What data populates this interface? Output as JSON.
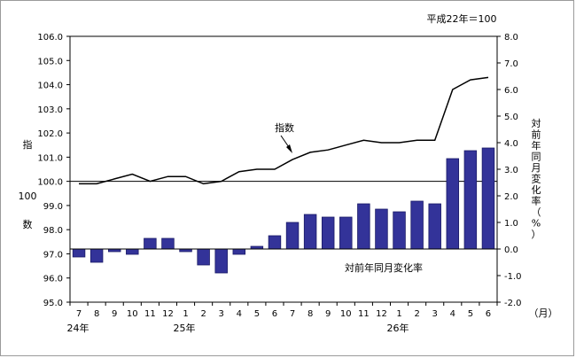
{
  "chart_data": {
    "type": "bar+line",
    "base_note": "平成22年＝100",
    "x_categories": [
      "7",
      "8",
      "9",
      "10",
      "11",
      "12",
      "1",
      "2",
      "3",
      "4",
      "5",
      "6",
      "7",
      "8",
      "9",
      "10",
      "11",
      "12",
      "1",
      "2",
      "3",
      "4",
      "5",
      "6"
    ],
    "x_unit": "（月）",
    "year_labels": [
      "24年",
      "25年",
      "26年"
    ],
    "left_axis": {
      "label_top": "指",
      "label_mid": "100",
      "label_bottom": "数",
      "ylim": [
        95.0,
        106.0
      ],
      "ticks": [
        "95.0",
        "96.0",
        "97.0",
        "98.0",
        "99.0",
        "100.0",
        "101.0",
        "102.0",
        "103.0",
        "104.0",
        "105.0",
        "106.0"
      ]
    },
    "right_axis": {
      "label_chars": [
        "対",
        "前",
        "年",
        "同",
        "月",
        "変",
        "化",
        "率",
        "（",
        "%",
        "）"
      ],
      "ylim": [
        -2.0,
        8.0
      ],
      "ticks": [
        "-2.0",
        "-1.0",
        "0.0",
        "1.0",
        "2.0",
        "3.0",
        "4.0",
        "5.0",
        "6.0",
        "7.0",
        "8.0"
      ]
    },
    "series": [
      {
        "name": "指数",
        "kind": "line",
        "axis": "left",
        "values": [
          99.9,
          99.9,
          100.1,
          100.3,
          100.0,
          100.2,
          100.2,
          99.9,
          100.0,
          100.4,
          100.5,
          100.5,
          100.9,
          101.2,
          101.3,
          101.5,
          101.7,
          101.6,
          101.6,
          101.7,
          101.7,
          103.8,
          104.2,
          104.3
        ]
      },
      {
        "name": "対前年同月変化率",
        "kind": "bar",
        "axis": "right",
        "values": [
          -0.3,
          -0.5,
          -0.1,
          -0.2,
          0.4,
          0.4,
          -0.1,
          -0.6,
          -0.9,
          -0.2,
          0.1,
          0.5,
          1.0,
          1.3,
          1.2,
          1.2,
          1.7,
          1.5,
          1.4,
          1.8,
          1.7,
          3.4,
          3.7,
          3.8
        ]
      }
    ],
    "colors": {
      "bar_fill": "#333399",
      "bar_stroke": "#1a1a66",
      "line": "#000000",
      "axis": "#000000"
    }
  }
}
